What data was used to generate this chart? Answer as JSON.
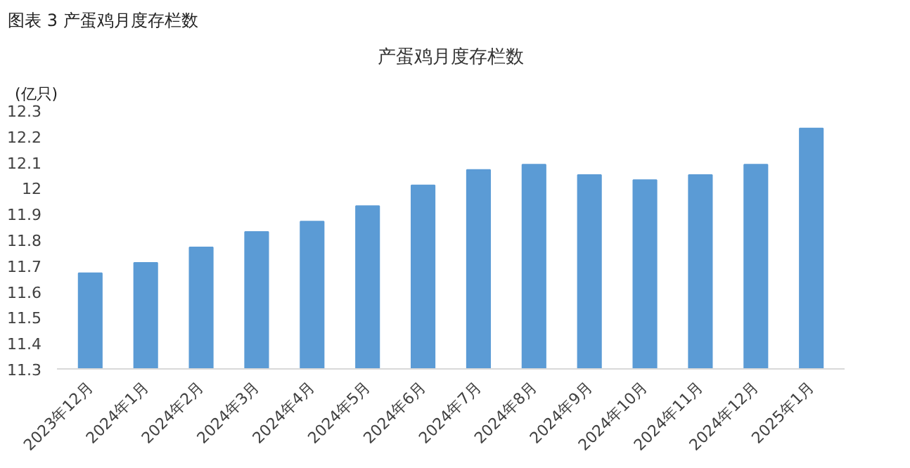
{
  "chart_data": {
    "type": "bar",
    "title": "产蛋鸡月度存栏数",
    "ylabel": "(亿只)",
    "annotations": [
      "图表 3 产蛋鸡月度存栏数"
    ],
    "categories": [
      "2023年12月",
      "2024年1月",
      "2024年2月",
      "2024年3月",
      "2024年4月",
      "2024年5月",
      "2024年6月",
      "2024年7月",
      "2024年8月",
      "2024年9月",
      "2024年10月",
      "2024年11月",
      "2024年12月",
      "2025年1月"
    ],
    "values": [
      11.67,
      11.71,
      11.77,
      11.83,
      11.87,
      11.93,
      12.01,
      12.07,
      12.09,
      12.05,
      12.03,
      12.05,
      12.09,
      12.23
    ],
    "color": "#5b9bd5",
    "ylim": [
      11.3,
      12.3
    ],
    "yticks": [
      11.3,
      11.4,
      11.5,
      11.6,
      11.7,
      11.8,
      11.9,
      12,
      12.1,
      12.2,
      12.3
    ],
    "grid": false
  }
}
